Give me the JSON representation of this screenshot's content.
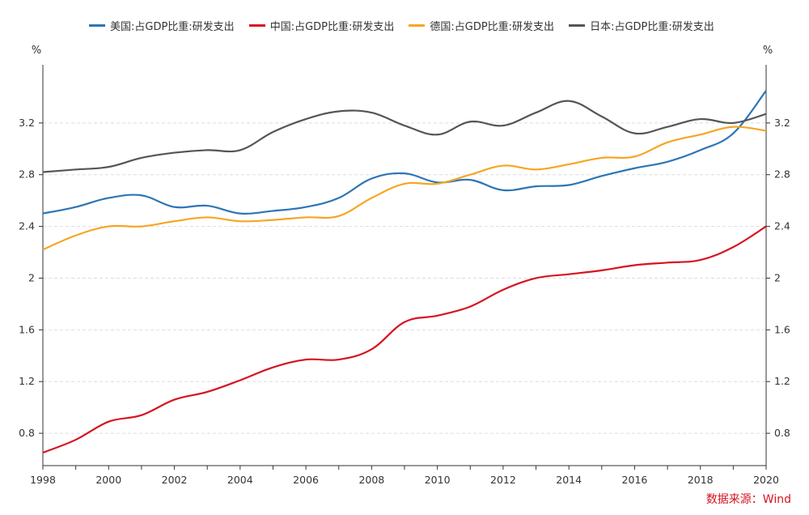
{
  "legend": [
    {
      "name": "美国:占GDP比重:研发支出",
      "color": "#2e75b6"
    },
    {
      "name": "中国:占GDP比重:研发支出",
      "color": "#d7131f"
    },
    {
      "name": "德国:占GDP比重:研发支出",
      "color": "#f5a623"
    },
    {
      "name": "日本:占GDP比重:研发支出",
      "color": "#555555"
    }
  ],
  "source": "数据来源：Wind",
  "chart_data": {
    "type": "line",
    "x": [
      1998,
      1999,
      2000,
      2001,
      2002,
      2003,
      2004,
      2005,
      2006,
      2007,
      2008,
      2009,
      2010,
      2011,
      2012,
      2013,
      2014,
      2015,
      2016,
      2017,
      2018,
      2019,
      2020
    ],
    "xticks": [
      "1998",
      "2000",
      "2002",
      "2004",
      "2006",
      "2008",
      "2010",
      "2012",
      "2014",
      "2016",
      "2018",
      "2020"
    ],
    "yticks": [
      "0.8",
      "1.2",
      "1.6",
      "2",
      "2.4",
      "2.8",
      "3.2"
    ],
    "ylim": [
      0.55,
      3.65
    ],
    "left_unit": "%",
    "right_unit": "%",
    "grid": true,
    "legend_position": "top",
    "series": [
      {
        "name": "美国:占GDP比重:研发支出",
        "color": "#2e75b6",
        "values": [
          2.5,
          2.55,
          2.62,
          2.64,
          2.55,
          2.56,
          2.5,
          2.52,
          2.55,
          2.62,
          2.77,
          2.81,
          2.74,
          2.76,
          2.68,
          2.71,
          2.72,
          2.79,
          2.85,
          2.9,
          2.99,
          3.12,
          3.45
        ]
      },
      {
        "name": "中国:占GDP比重:研发支出",
        "color": "#d7131f",
        "values": [
          0.65,
          0.75,
          0.89,
          0.94,
          1.06,
          1.12,
          1.21,
          1.31,
          1.37,
          1.37,
          1.45,
          1.66,
          1.71,
          1.78,
          1.91,
          2.0,
          2.03,
          2.06,
          2.1,
          2.12,
          2.14,
          2.24,
          2.4
        ]
      },
      {
        "name": "德国:占GDP比重:研发支出",
        "color": "#f5a623",
        "values": [
          2.22,
          2.33,
          2.4,
          2.4,
          2.44,
          2.47,
          2.44,
          2.45,
          2.47,
          2.48,
          2.62,
          2.73,
          2.73,
          2.8,
          2.87,
          2.84,
          2.88,
          2.93,
          2.94,
          3.05,
          3.11,
          3.17,
          3.14
        ]
      },
      {
        "name": "日本:占GDP比重:研发支出",
        "color": "#555555",
        "values": [
          2.82,
          2.84,
          2.86,
          2.93,
          2.97,
          2.99,
          2.99,
          3.13,
          3.23,
          3.29,
          3.28,
          3.18,
          3.11,
          3.21,
          3.18,
          3.28,
          3.37,
          3.25,
          3.12,
          3.17,
          3.23,
          3.2,
          3.27
        ]
      }
    ]
  }
}
